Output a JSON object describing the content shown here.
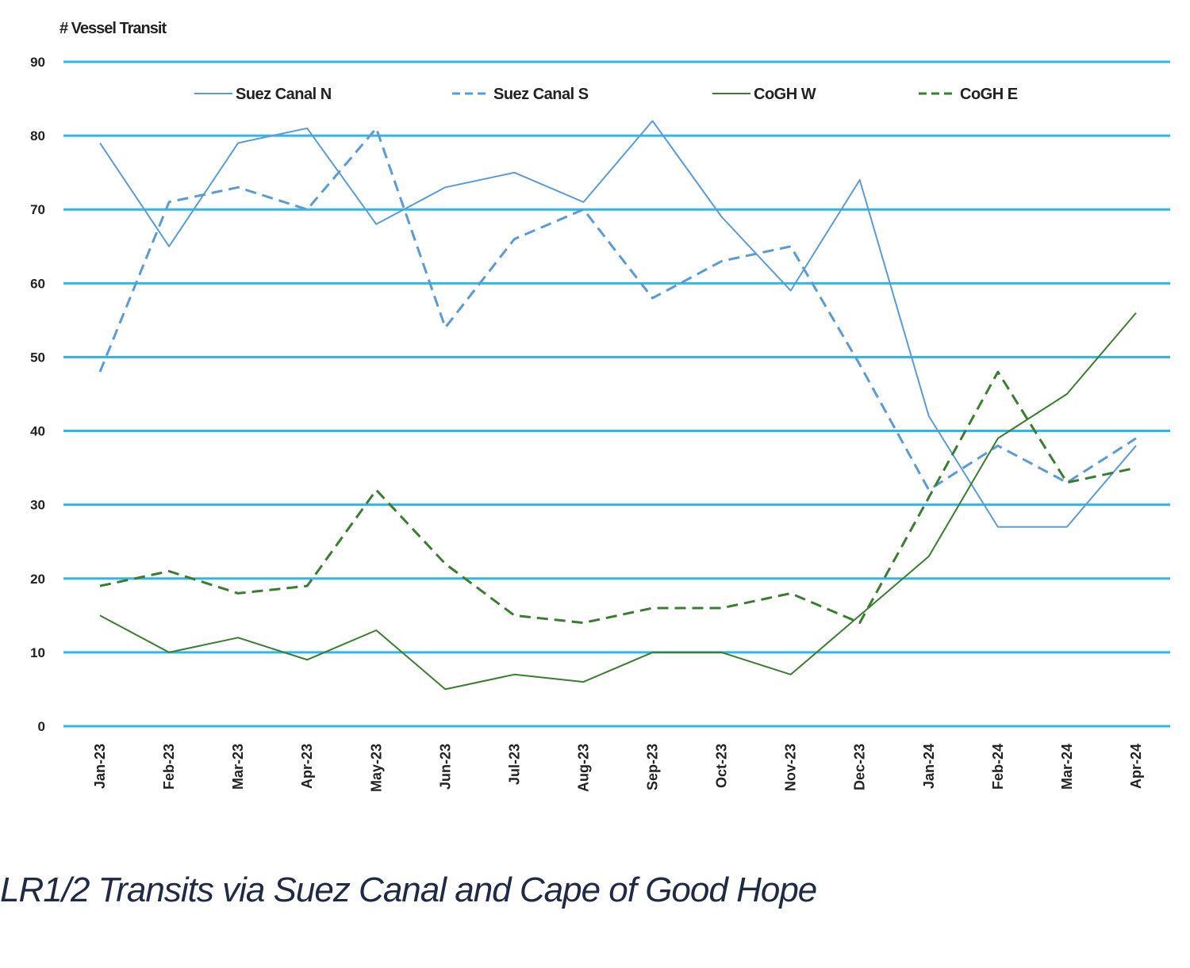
{
  "caption": "LR1/2 Transits via Suez Canal and Cape of Good Hope",
  "chart_data": {
    "type": "line",
    "ylabel": "# Vessel Transit",
    "ylim": [
      0,
      90
    ],
    "yticks": [
      0,
      10,
      20,
      30,
      40,
      50,
      60,
      70,
      80,
      90
    ],
    "categories": [
      "Jan-23",
      "Feb-23",
      "Mar-23",
      "Apr-23",
      "May-23",
      "Jun-23",
      "Jul-23",
      "Aug-23",
      "Sep-23",
      "Oct-23",
      "Nov-23",
      "Dec-23",
      "Jan-24",
      "Feb-24",
      "Mar-24",
      "Apr-24"
    ],
    "grid": true,
    "legend_position": "top",
    "series": [
      {
        "name": "Suez Canal N",
        "color": "#5b9bd5",
        "dash": "solid",
        "width": 2,
        "values": [
          79,
          65,
          79,
          81,
          68,
          73,
          75,
          71,
          82,
          69,
          59,
          74,
          42,
          27,
          27,
          38
        ]
      },
      {
        "name": "Suez Canal S",
        "color": "#5b9bd5",
        "dash": "dashed",
        "width": 3,
        "values": [
          48,
          71,
          73,
          70,
          81,
          54,
          66,
          70,
          58,
          63,
          65,
          49,
          32,
          38,
          33,
          39
        ]
      },
      {
        "name": "CoGH W",
        "color": "#3a7d30",
        "dash": "solid",
        "width": 2,
        "values": [
          15,
          10,
          12,
          9,
          13,
          5,
          7,
          6,
          10,
          10,
          7,
          15,
          23,
          39,
          45,
          56
        ]
      },
      {
        "name": "CoGH E",
        "color": "#3a7d30",
        "dash": "dashed",
        "width": 3,
        "values": [
          19,
          21,
          18,
          19,
          32,
          22,
          15,
          14,
          16,
          16,
          18,
          14,
          31,
          48,
          33,
          35
        ]
      }
    ],
    "grid_color": "#2db8e6"
  }
}
